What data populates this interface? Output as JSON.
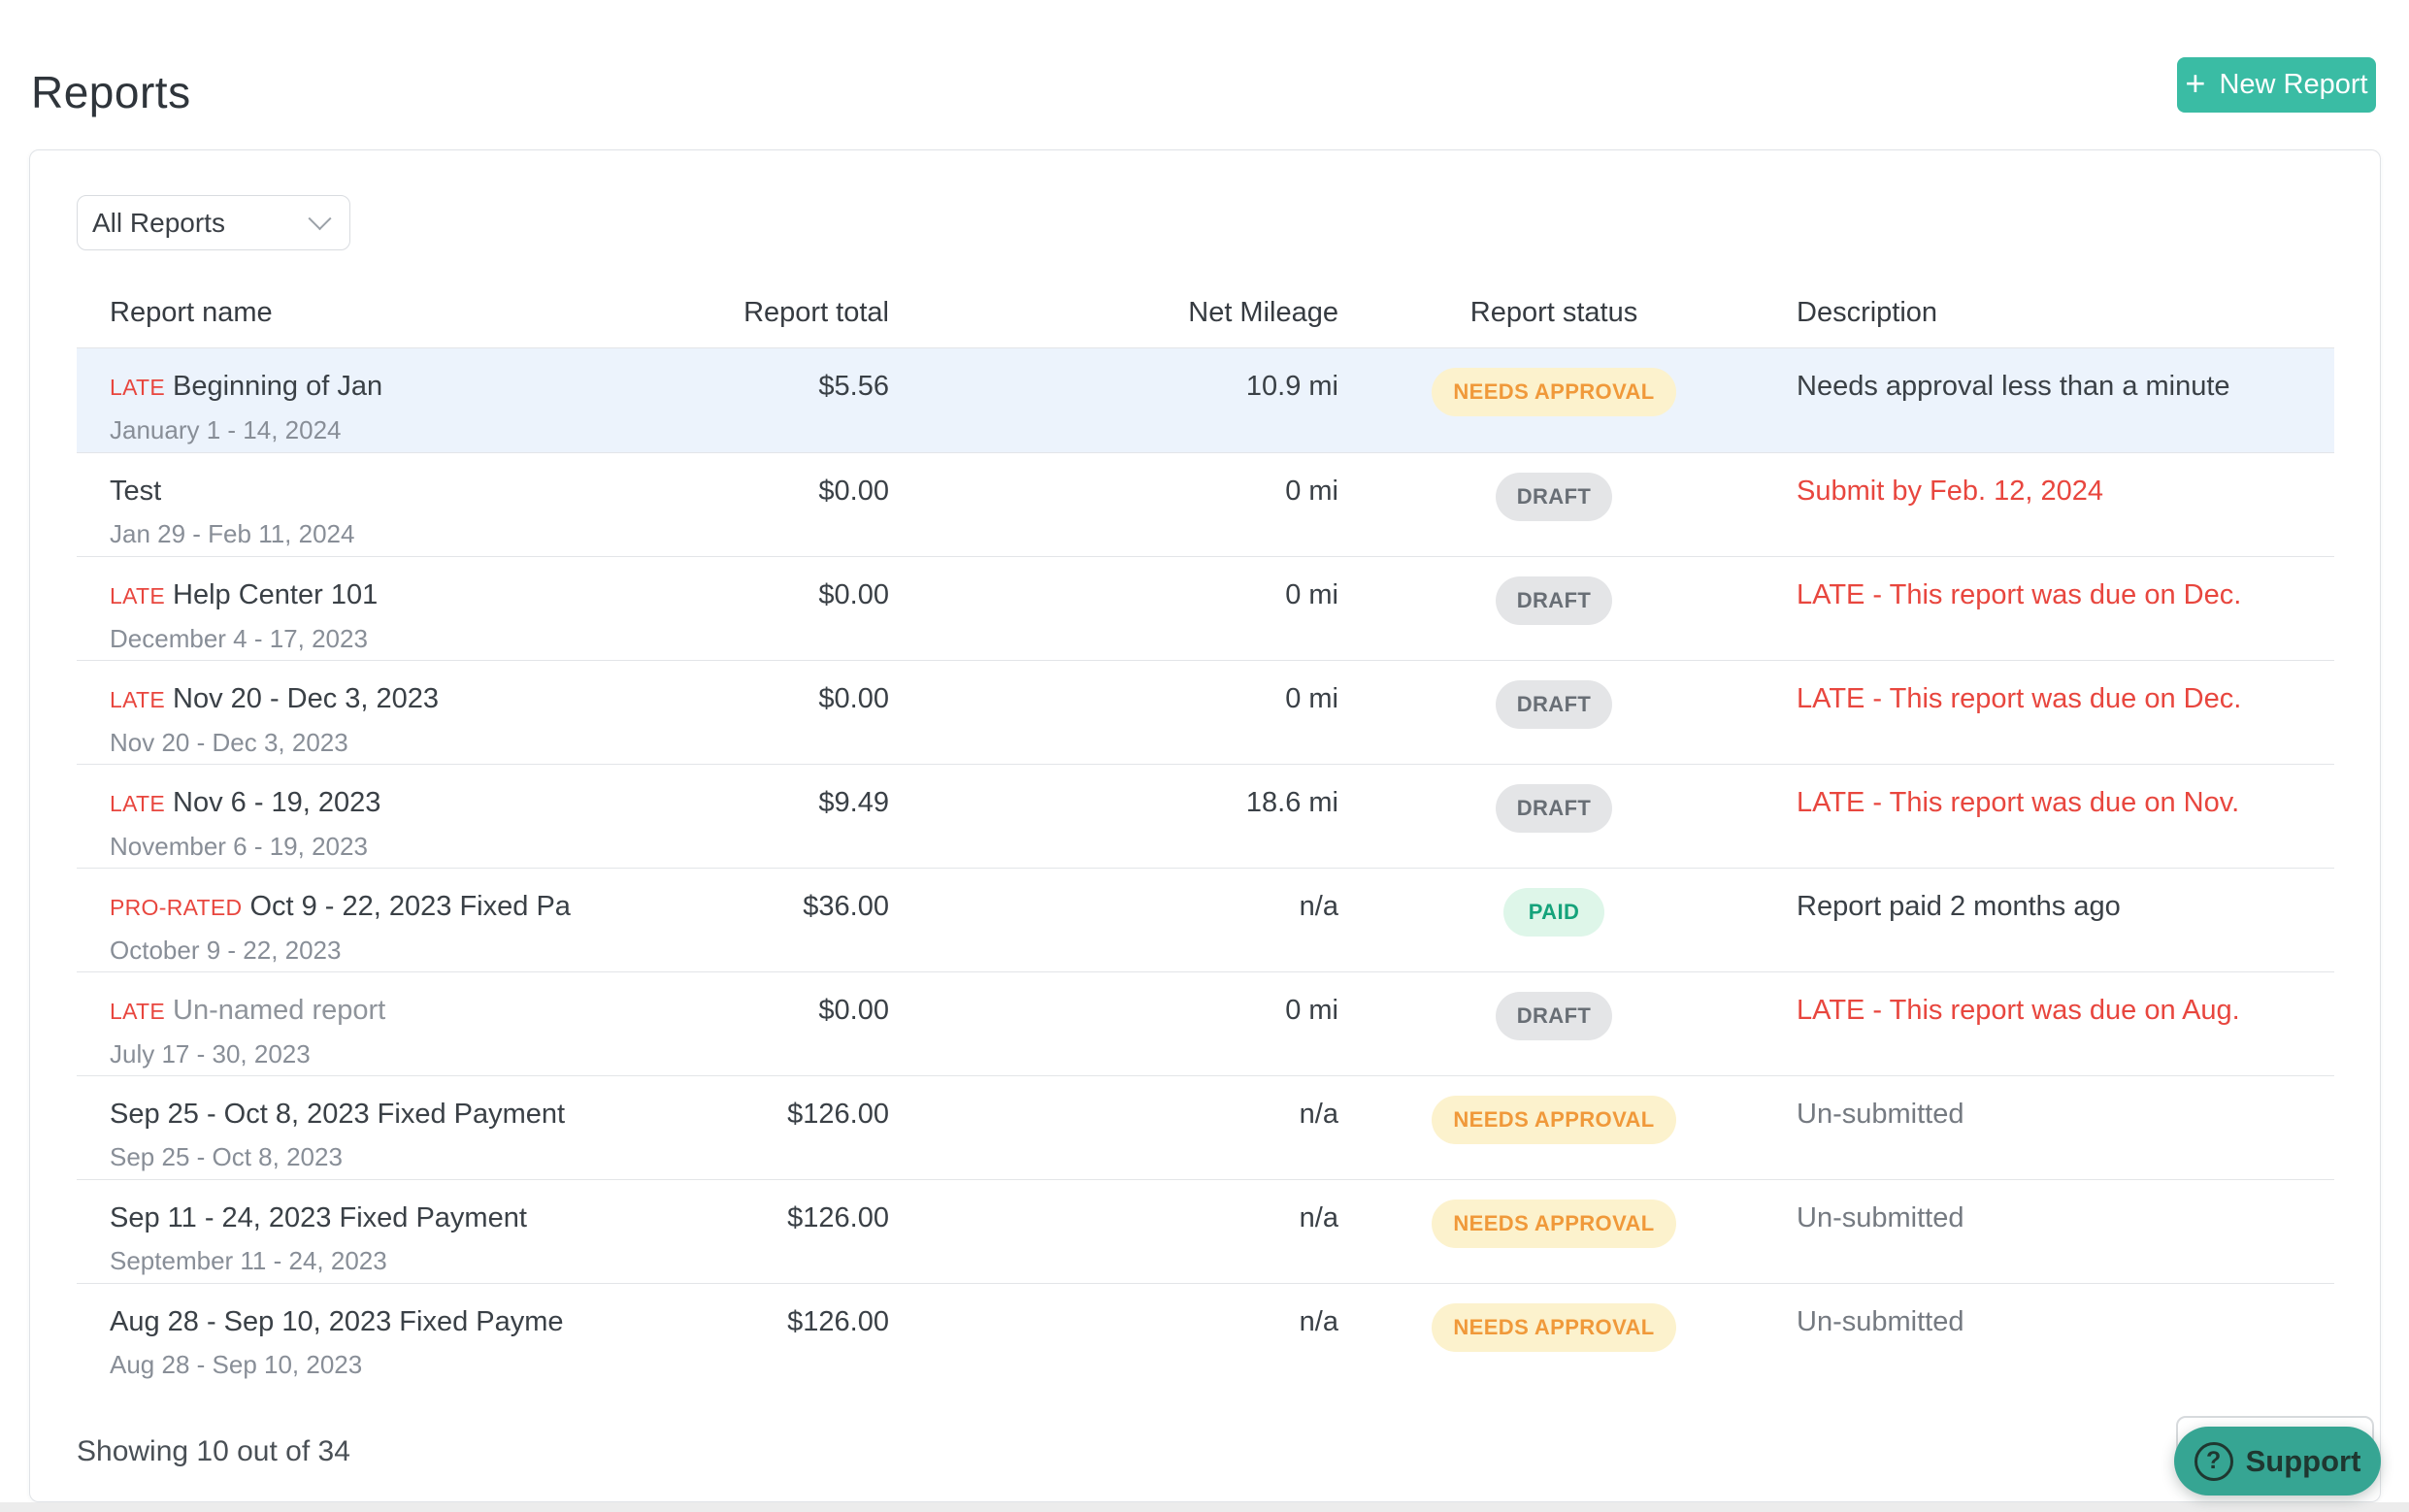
{
  "page": {
    "title": "Reports"
  },
  "toolbar": {
    "new_report_label": "New Report",
    "plus": "+"
  },
  "filter": {
    "selected": "All Reports"
  },
  "table": {
    "columns": [
      "Report name",
      "Report total",
      "Net Mileage",
      "Report status",
      "Description"
    ],
    "rows": [
      {
        "tag": "LATE",
        "name": "Beginning of Jan",
        "date_range": "January 1 - 14, 2024",
        "total": "$5.56",
        "mileage": "10.9 mi",
        "status": "NEEDS APPROVAL",
        "status_type": "needs_approval",
        "description": "Needs approval less than a minute",
        "description_style": "dark",
        "highlighted": true
      },
      {
        "tag": "",
        "name": "Test",
        "date_range": "Jan 29 - Feb 11, 2024",
        "total": "$0.00",
        "mileage": "0 mi",
        "status": "DRAFT",
        "status_type": "draft",
        "description": "Submit by Feb. 12, 2024",
        "description_style": "red",
        "highlighted": false
      },
      {
        "tag": "LATE",
        "name": "Help Center 101",
        "date_range": "December 4 - 17, 2023",
        "total": "$0.00",
        "mileage": "0 mi",
        "status": "DRAFT",
        "status_type": "draft",
        "description": "LATE - This report was due on Dec.",
        "description_style": "red",
        "highlighted": false
      },
      {
        "tag": "LATE",
        "name": "Nov 20 - Dec 3, 2023",
        "date_range": "Nov 20 - Dec 3, 2023",
        "total": "$0.00",
        "mileage": "0 mi",
        "status": "DRAFT",
        "status_type": "draft",
        "description": "LATE - This report was due on Dec.",
        "description_style": "red",
        "highlighted": false
      },
      {
        "tag": "LATE",
        "name": "Nov 6 - 19, 2023",
        "date_range": "November 6 - 19, 2023",
        "total": "$9.49",
        "mileage": "18.6 mi",
        "status": "DRAFT",
        "status_type": "draft",
        "description": "LATE - This report was due on Nov.",
        "description_style": "red",
        "highlighted": false
      },
      {
        "tag": "PRO-RATED",
        "name": "Oct 9 - 22, 2023 Fixed Pa",
        "date_range": "October 9 - 22, 2023",
        "total": "$36.00",
        "mileage": "n/a",
        "status": "PAID",
        "status_type": "paid",
        "description": "Report paid 2 months ago",
        "description_style": "dark",
        "highlighted": false
      },
      {
        "tag": "LATE",
        "name": "Un-named report",
        "name_muted": true,
        "date_range": "July 17 - 30, 2023",
        "total": "$0.00",
        "mileage": "0 mi",
        "status": "DRAFT",
        "status_type": "draft",
        "description": "LATE - This report was due on Aug.",
        "description_style": "red",
        "highlighted": false
      },
      {
        "tag": "",
        "name": "Sep 25 - Oct 8, 2023 Fixed Payment",
        "date_range": "Sep 25 - Oct 8, 2023",
        "total": "$126.00",
        "mileage": "n/a",
        "status": "NEEDS APPROVAL",
        "status_type": "needs_approval",
        "description": "Un-submitted",
        "description_style": "gray",
        "highlighted": false
      },
      {
        "tag": "",
        "name": "Sep 11 - 24, 2023 Fixed Payment",
        "date_range": "September 11 - 24, 2023",
        "total": "$126.00",
        "mileage": "n/a",
        "status": "NEEDS APPROVAL",
        "status_type": "needs_approval",
        "description": "Un-submitted",
        "description_style": "gray",
        "highlighted": false
      },
      {
        "tag": "",
        "name": "Aug 28 - Sep 10, 2023 Fixed Payme",
        "date_range": "Aug 28 - Sep 10, 2023",
        "total": "$126.00",
        "mileage": "n/a",
        "status": "NEEDS APPROVAL",
        "status_type": "needs_approval",
        "description": "Un-submitted",
        "description_style": "gray",
        "highlighted": false
      }
    ]
  },
  "footer": {
    "summary": "Showing 10 out of 34"
  },
  "support": {
    "label": "Support",
    "icon": "?"
  },
  "colors": {
    "accent_teal": "#3abca4",
    "support_teal": "#36a593",
    "late_red": "#e8463e",
    "row_highlight": "#ecf3fc",
    "badge_needs_approval_bg": "#fcf2cd",
    "badge_needs_approval_text": "#f0993a",
    "badge_draft_bg": "#e4e5e7",
    "badge_draft_text": "#686e75",
    "badge_paid_bg": "#def6e9",
    "badge_paid_text": "#15a37b"
  }
}
